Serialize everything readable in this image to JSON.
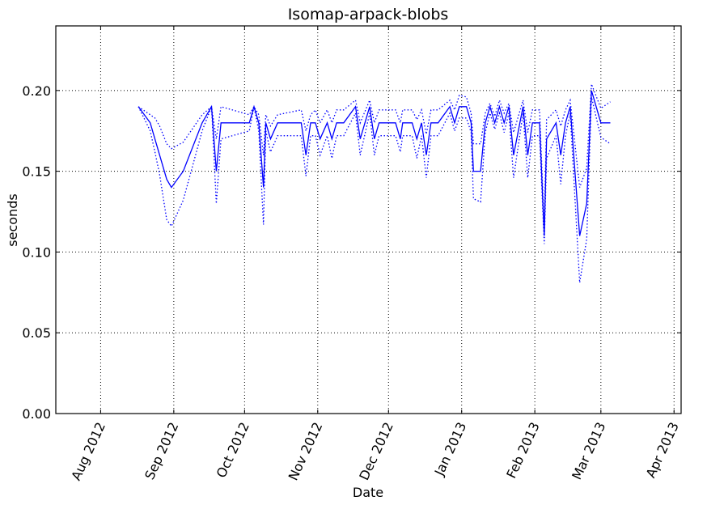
{
  "chart_data": {
    "type": "line",
    "title": "Isomap-arpack-blobs",
    "xlabel": "Date",
    "ylabel": "seconds",
    "xlim": [
      "2012-07-13",
      "2013-04-04"
    ],
    "ylim": [
      0.0,
      0.24
    ],
    "grid": true,
    "x_ticks": [
      {
        "date": "2012-08-01",
        "label": "Aug 2012"
      },
      {
        "date": "2012-09-01",
        "label": "Sep 2012"
      },
      {
        "date": "2012-10-01",
        "label": "Oct 2012"
      },
      {
        "date": "2012-11-01",
        "label": "Nov 2012"
      },
      {
        "date": "2012-12-01",
        "label": "Dec 2012"
      },
      {
        "date": "2013-01-01",
        "label": "Jan 2013"
      },
      {
        "date": "2013-02-01",
        "label": "Feb 2013"
      },
      {
        "date": "2013-03-01",
        "label": "Mar 2013"
      },
      {
        "date": "2013-04-01",
        "label": "Apr 2013"
      }
    ],
    "y_ticks": [
      {
        "value": 0.0,
        "label": "0.00"
      },
      {
        "value": 0.05,
        "label": "0.05"
      },
      {
        "value": 0.1,
        "label": "0.10"
      },
      {
        "value": 0.15,
        "label": "0.15"
      },
      {
        "value": 0.2,
        "label": "0.20"
      }
    ],
    "colors": {
      "series": "#0000ff",
      "grid": "#000000",
      "axes": "#000000"
    },
    "series": [
      {
        "style": "solid",
        "points": [
          [
            "2012-08-17",
            0.19
          ],
          [
            "2012-08-22",
            0.18
          ],
          [
            "2012-08-24",
            0.17
          ],
          [
            "2012-08-29",
            0.145
          ],
          [
            "2012-08-31",
            0.14
          ],
          [
            "2012-09-05",
            0.15
          ],
          [
            "2012-09-13",
            0.18
          ],
          [
            "2012-09-17",
            0.19
          ],
          [
            "2012-09-19",
            0.15
          ],
          [
            "2012-09-21",
            0.18
          ],
          [
            "2012-10-03",
            0.18
          ],
          [
            "2012-10-05",
            0.19
          ],
          [
            "2012-10-07",
            0.18
          ],
          [
            "2012-10-09",
            0.14
          ],
          [
            "2012-10-10",
            0.18
          ],
          [
            "2012-10-12",
            0.17
          ],
          [
            "2012-10-15",
            0.18
          ],
          [
            "2012-10-25",
            0.18
          ],
          [
            "2012-10-27",
            0.16
          ],
          [
            "2012-10-29",
            0.18
          ],
          [
            "2012-10-31",
            0.18
          ],
          [
            "2012-11-02",
            0.17
          ],
          [
            "2012-11-05",
            0.18
          ],
          [
            "2012-11-07",
            0.17
          ],
          [
            "2012-11-09",
            0.18
          ],
          [
            "2012-11-12",
            0.18
          ],
          [
            "2012-11-17",
            0.19
          ],
          [
            "2012-11-19",
            0.17
          ],
          [
            "2012-11-23",
            0.19
          ],
          [
            "2012-11-25",
            0.17
          ],
          [
            "2012-11-27",
            0.18
          ],
          [
            "2012-12-04",
            0.18
          ],
          [
            "2012-12-06",
            0.17
          ],
          [
            "2012-12-07",
            0.18
          ],
          [
            "2012-12-11",
            0.18
          ],
          [
            "2012-12-13",
            0.17
          ],
          [
            "2012-12-15",
            0.18
          ],
          [
            "2012-12-17",
            0.16
          ],
          [
            "2012-12-19",
            0.18
          ],
          [
            "2012-12-22",
            0.18
          ],
          [
            "2012-12-27",
            0.19
          ],
          [
            "2012-12-29",
            0.18
          ],
          [
            "2012-12-31",
            0.19
          ],
          [
            "2013-01-03",
            0.19
          ],
          [
            "2013-01-05",
            0.18
          ],
          [
            "2013-01-06",
            0.15
          ],
          [
            "2013-01-09",
            0.15
          ],
          [
            "2013-01-11",
            0.18
          ],
          [
            "2013-01-13",
            0.19
          ],
          [
            "2013-01-15",
            0.18
          ],
          [
            "2013-01-17",
            0.19
          ],
          [
            "2013-01-19",
            0.18
          ],
          [
            "2013-01-21",
            0.19
          ],
          [
            "2013-01-23",
            0.16
          ],
          [
            "2013-01-27",
            0.19
          ],
          [
            "2013-01-29",
            0.16
          ],
          [
            "2013-01-31",
            0.18
          ],
          [
            "2013-02-03",
            0.18
          ],
          [
            "2013-02-05",
            0.11
          ],
          [
            "2013-02-06",
            0.17
          ],
          [
            "2013-02-10",
            0.18
          ],
          [
            "2013-02-12",
            0.16
          ],
          [
            "2013-02-14",
            0.18
          ],
          [
            "2013-02-16",
            0.19
          ],
          [
            "2013-02-20",
            0.11
          ],
          [
            "2013-02-23",
            0.13
          ],
          [
            "2013-02-25",
            0.2
          ],
          [
            "2013-03-01",
            0.18
          ],
          [
            "2013-03-05",
            0.18
          ]
        ]
      },
      {
        "style": "dotted",
        "points": [
          [
            "2012-08-17",
            0.19
          ],
          [
            "2012-08-22",
            0.185
          ],
          [
            "2012-08-24",
            0.183
          ],
          [
            "2012-08-26",
            0.178
          ],
          [
            "2012-08-29",
            0.167
          ],
          [
            "2012-08-31",
            0.164
          ],
          [
            "2012-09-05",
            0.168
          ],
          [
            "2012-09-13",
            0.185
          ],
          [
            "2012-09-17",
            0.19
          ],
          [
            "2012-09-19",
            0.17
          ],
          [
            "2012-09-21",
            0.19
          ],
          [
            "2012-10-03",
            0.185
          ],
          [
            "2012-10-05",
            0.19
          ],
          [
            "2012-10-07",
            0.185
          ],
          [
            "2012-10-09",
            0.16
          ],
          [
            "2012-10-10",
            0.185
          ],
          [
            "2012-10-12",
            0.178
          ],
          [
            "2012-10-15",
            0.185
          ],
          [
            "2012-10-25",
            0.188
          ],
          [
            "2012-10-27",
            0.175
          ],
          [
            "2012-10-29",
            0.185
          ],
          [
            "2012-10-31",
            0.188
          ],
          [
            "2012-11-02",
            0.18
          ],
          [
            "2012-11-05",
            0.188
          ],
          [
            "2012-11-07",
            0.18
          ],
          [
            "2012-11-09",
            0.188
          ],
          [
            "2012-11-12",
            0.188
          ],
          [
            "2012-11-17",
            0.194
          ],
          [
            "2012-11-19",
            0.18
          ],
          [
            "2012-11-23",
            0.194
          ],
          [
            "2012-11-25",
            0.18
          ],
          [
            "2012-11-27",
            0.188
          ],
          [
            "2012-12-04",
            0.188
          ],
          [
            "2012-12-06",
            0.18
          ],
          [
            "2012-12-07",
            0.188
          ],
          [
            "2012-12-11",
            0.188
          ],
          [
            "2012-12-13",
            0.182
          ],
          [
            "2012-12-15",
            0.188
          ],
          [
            "2012-12-17",
            0.173
          ],
          [
            "2012-12-19",
            0.188
          ],
          [
            "2012-12-22",
            0.188
          ],
          [
            "2012-12-27",
            0.194
          ],
          [
            "2012-12-29",
            0.188
          ],
          [
            "2012-12-31",
            0.197
          ],
          [
            "2013-01-03",
            0.196
          ],
          [
            "2013-01-05",
            0.186
          ],
          [
            "2013-01-06",
            0.167
          ],
          [
            "2013-01-09",
            0.167
          ],
          [
            "2013-01-11",
            0.186
          ],
          [
            "2013-01-13",
            0.192
          ],
          [
            "2013-01-15",
            0.184
          ],
          [
            "2013-01-17",
            0.194
          ],
          [
            "2013-01-19",
            0.186
          ],
          [
            "2013-01-21",
            0.192
          ],
          [
            "2013-01-23",
            0.174
          ],
          [
            "2013-01-27",
            0.194
          ],
          [
            "2013-01-29",
            0.174
          ],
          [
            "2013-01-31",
            0.188
          ],
          [
            "2013-02-03",
            0.188
          ],
          [
            "2013-02-05",
            0.115
          ],
          [
            "2013-02-06",
            0.182
          ],
          [
            "2013-02-10",
            0.188
          ],
          [
            "2013-02-12",
            0.178
          ],
          [
            "2013-02-14",
            0.188
          ],
          [
            "2013-02-16",
            0.194
          ],
          [
            "2013-02-20",
            0.14
          ],
          [
            "2013-02-23",
            0.152
          ],
          [
            "2013-02-25",
            0.204
          ],
          [
            "2013-03-01",
            0.189
          ],
          [
            "2013-03-05",
            0.193
          ]
        ]
      },
      {
        "style": "dotted",
        "points": [
          [
            "2012-08-17",
            0.19
          ],
          [
            "2012-08-22",
            0.175
          ],
          [
            "2012-08-24",
            0.162
          ],
          [
            "2012-08-26",
            0.148
          ],
          [
            "2012-08-29",
            0.12
          ],
          [
            "2012-08-31",
            0.116
          ],
          [
            "2012-09-05",
            0.132
          ],
          [
            "2012-09-13",
            0.175
          ],
          [
            "2012-09-17",
            0.19
          ],
          [
            "2012-09-19",
            0.13
          ],
          [
            "2012-09-21",
            0.17
          ],
          [
            "2012-10-03",
            0.175
          ],
          [
            "2012-10-05",
            0.19
          ],
          [
            "2012-10-07",
            0.175
          ],
          [
            "2012-10-09",
            0.117
          ],
          [
            "2012-10-10",
            0.175
          ],
          [
            "2012-10-12",
            0.162
          ],
          [
            "2012-10-15",
            0.172
          ],
          [
            "2012-10-25",
            0.172
          ],
          [
            "2012-10-27",
            0.147
          ],
          [
            "2012-10-29",
            0.172
          ],
          [
            "2012-10-31",
            0.172
          ],
          [
            "2012-11-02",
            0.16
          ],
          [
            "2012-11-05",
            0.172
          ],
          [
            "2012-11-07",
            0.158
          ],
          [
            "2012-11-09",
            0.172
          ],
          [
            "2012-11-12",
            0.172
          ],
          [
            "2012-11-17",
            0.186
          ],
          [
            "2012-11-19",
            0.16
          ],
          [
            "2012-11-23",
            0.186
          ],
          [
            "2012-11-25",
            0.16
          ],
          [
            "2012-11-27",
            0.172
          ],
          [
            "2012-12-04",
            0.172
          ],
          [
            "2012-12-06",
            0.162
          ],
          [
            "2012-12-07",
            0.172
          ],
          [
            "2012-12-11",
            0.172
          ],
          [
            "2012-12-13",
            0.158
          ],
          [
            "2012-12-15",
            0.172
          ],
          [
            "2012-12-17",
            0.146
          ],
          [
            "2012-12-19",
            0.172
          ],
          [
            "2012-12-22",
            0.172
          ],
          [
            "2012-12-27",
            0.186
          ],
          [
            "2012-12-29",
            0.175
          ],
          [
            "2012-12-31",
            0.183
          ],
          [
            "2013-01-03",
            0.183
          ],
          [
            "2013-01-05",
            0.174
          ],
          [
            "2013-01-06",
            0.133
          ],
          [
            "2013-01-09",
            0.131
          ],
          [
            "2013-01-11",
            0.174
          ],
          [
            "2013-01-13",
            0.186
          ],
          [
            "2013-01-15",
            0.176
          ],
          [
            "2013-01-17",
            0.186
          ],
          [
            "2013-01-19",
            0.174
          ],
          [
            "2013-01-21",
            0.186
          ],
          [
            "2013-01-23",
            0.146
          ],
          [
            "2013-01-27",
            0.186
          ],
          [
            "2013-01-29",
            0.146
          ],
          [
            "2013-01-31",
            0.172
          ],
          [
            "2013-02-03",
            0.172
          ],
          [
            "2013-02-05",
            0.105
          ],
          [
            "2013-02-06",
            0.158
          ],
          [
            "2013-02-10",
            0.172
          ],
          [
            "2013-02-12",
            0.142
          ],
          [
            "2013-02-14",
            0.172
          ],
          [
            "2013-02-16",
            0.186
          ],
          [
            "2013-02-20",
            0.081
          ],
          [
            "2013-02-23",
            0.108
          ],
          [
            "2013-02-25",
            0.196
          ],
          [
            "2013-03-01",
            0.171
          ],
          [
            "2013-03-05",
            0.167
          ]
        ]
      }
    ]
  }
}
